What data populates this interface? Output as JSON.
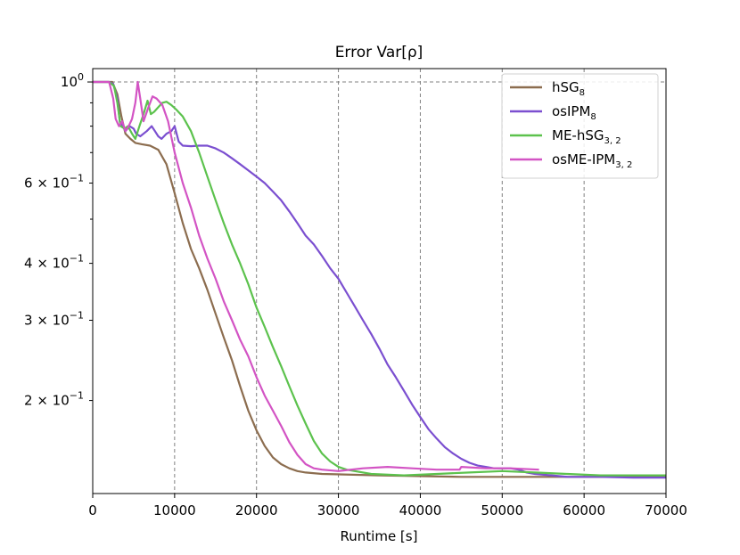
{
  "chart_data": {
    "type": "line",
    "title": "Error Var[ρ]",
    "xlabel": "Runtime [s]",
    "ylabel": "",
    "xlim": [
      0,
      70000
    ],
    "ylim": [
      0.125,
      1.07
    ],
    "yscale": "log",
    "grid": "vertical major lines and y = 10^0, dashed grey",
    "legend_position": "top-right",
    "x_ticks": [
      {
        "value": 0,
        "label": "0"
      },
      {
        "value": 10000,
        "label": "10000"
      },
      {
        "value": 20000,
        "label": "20000"
      },
      {
        "value": 30000,
        "label": "30000"
      },
      {
        "value": 40000,
        "label": "40000"
      },
      {
        "value": 50000,
        "label": "50000"
      },
      {
        "value": 60000,
        "label": "60000"
      },
      {
        "value": 70000,
        "label": "70000"
      }
    ],
    "y_ticks": [
      {
        "value": 1.0,
        "mantissa": "10",
        "exponent": "0"
      },
      {
        "value": 0.6,
        "mantissa": "6 × 10",
        "exponent": "−1"
      },
      {
        "value": 0.4,
        "mantissa": "4 × 10",
        "exponent": "−1"
      },
      {
        "value": 0.3,
        "mantissa": "3 × 10",
        "exponent": "−1"
      },
      {
        "value": 0.2,
        "mantissa": "2 × 10",
        "exponent": "−1"
      }
    ],
    "series": [
      {
        "name": "hSG",
        "subscript": "8",
        "color": "#8c6d4f",
        "points": [
          [
            0,
            1.0
          ],
          [
            2400,
            1.0
          ],
          [
            3000,
            0.94
          ],
          [
            3500,
            0.84
          ],
          [
            4000,
            0.77
          ],
          [
            4600,
            0.75
          ],
          [
            5200,
            0.735
          ],
          [
            6000,
            0.73
          ],
          [
            7000,
            0.725
          ],
          [
            8000,
            0.71
          ],
          [
            9000,
            0.66
          ],
          [
            10000,
            0.57
          ],
          [
            11000,
            0.49
          ],
          [
            12000,
            0.43
          ],
          [
            13000,
            0.39
          ],
          [
            14000,
            0.35
          ],
          [
            15000,
            0.31
          ],
          [
            16000,
            0.275
          ],
          [
            17000,
            0.245
          ],
          [
            18000,
            0.215
          ],
          [
            19000,
            0.19
          ],
          [
            20000,
            0.172
          ],
          [
            21000,
            0.159
          ],
          [
            22000,
            0.15
          ],
          [
            23000,
            0.145
          ],
          [
            24000,
            0.142
          ],
          [
            25000,
            0.14
          ],
          [
            26000,
            0.139
          ],
          [
            28000,
            0.138
          ],
          [
            35000,
            0.137
          ],
          [
            45000,
            0.136
          ],
          [
            55000,
            0.136
          ],
          [
            70000,
            0.136
          ]
        ]
      },
      {
        "name": "osIPM",
        "subscript": "8",
        "color": "#7b4fd0",
        "points": [
          [
            0,
            1.0
          ],
          [
            2000,
            1.0
          ],
          [
            2500,
            0.99
          ],
          [
            3000,
            0.92
          ],
          [
            3300,
            0.82
          ],
          [
            3700,
            0.8
          ],
          [
            4000,
            0.78
          ],
          [
            4500,
            0.8
          ],
          [
            5000,
            0.79
          ],
          [
            5300,
            0.77
          ],
          [
            5800,
            0.76
          ],
          [
            6600,
            0.78
          ],
          [
            7200,
            0.8
          ],
          [
            7600,
            0.78
          ],
          [
            8000,
            0.76
          ],
          [
            8400,
            0.75
          ],
          [
            9000,
            0.77
          ],
          [
            9600,
            0.78
          ],
          [
            10000,
            0.8
          ],
          [
            10500,
            0.74
          ],
          [
            11000,
            0.725
          ],
          [
            12000,
            0.723
          ],
          [
            13000,
            0.725
          ],
          [
            14000,
            0.725
          ],
          [
            15000,
            0.715
          ],
          [
            16000,
            0.7
          ],
          [
            17000,
            0.68
          ],
          [
            18000,
            0.66
          ],
          [
            19000,
            0.64
          ],
          [
            20000,
            0.62
          ],
          [
            21000,
            0.6
          ],
          [
            22000,
            0.575
          ],
          [
            23000,
            0.55
          ],
          [
            24000,
            0.52
          ],
          [
            25000,
            0.49
          ],
          [
            26000,
            0.46
          ],
          [
            27000,
            0.44
          ],
          [
            28000,
            0.415
          ],
          [
            29000,
            0.39
          ],
          [
            30000,
            0.37
          ],
          [
            31000,
            0.345
          ],
          [
            32000,
            0.322
          ],
          [
            33000,
            0.3
          ],
          [
            34000,
            0.28
          ],
          [
            35000,
            0.26
          ],
          [
            36000,
            0.24
          ],
          [
            37000,
            0.225
          ],
          [
            38000,
            0.21
          ],
          [
            39000,
            0.196
          ],
          [
            40000,
            0.184
          ],
          [
            41000,
            0.173
          ],
          [
            42000,
            0.165
          ],
          [
            43000,
            0.158
          ],
          [
            44000,
            0.153
          ],
          [
            45000,
            0.149
          ],
          [
            46000,
            0.146
          ],
          [
            47000,
            0.144
          ],
          [
            48000,
            0.143
          ],
          [
            49000,
            0.142
          ],
          [
            50000,
            0.142
          ],
          [
            51000,
            0.142
          ],
          [
            52000,
            0.141
          ],
          [
            53000,
            0.139
          ],
          [
            54000,
            0.138
          ],
          [
            56000,
            0.137
          ],
          [
            58000,
            0.136
          ],
          [
            62000,
            0.136
          ],
          [
            66000,
            0.1355
          ],
          [
            70000,
            0.1355
          ]
        ]
      },
      {
        "name": "ME-hSG",
        "subscript": "3, 2",
        "color": "#5cc24d",
        "points": [
          [
            0,
            1.0
          ],
          [
            2000,
            1.0
          ],
          [
            2600,
            0.98
          ],
          [
            3000,
            0.9
          ],
          [
            3400,
            0.8
          ],
          [
            3900,
            0.79
          ],
          [
            4300,
            0.8
          ],
          [
            4800,
            0.77
          ],
          [
            5200,
            0.75
          ],
          [
            5700,
            0.8
          ],
          [
            6200,
            0.85
          ],
          [
            6700,
            0.91
          ],
          [
            7100,
            0.85
          ],
          [
            7500,
            0.86
          ],
          [
            8000,
            0.88
          ],
          [
            8500,
            0.9
          ],
          [
            9000,
            0.905
          ],
          [
            9600,
            0.89
          ],
          [
            10200,
            0.87
          ],
          [
            11000,
            0.84
          ],
          [
            12000,
            0.78
          ],
          [
            13000,
            0.7
          ],
          [
            14000,
            0.62
          ],
          [
            15000,
            0.55
          ],
          [
            16000,
            0.49
          ],
          [
            17000,
            0.44
          ],
          [
            18000,
            0.4
          ],
          [
            19000,
            0.36
          ],
          [
            20000,
            0.32
          ],
          [
            21000,
            0.29
          ],
          [
            22000,
            0.262
          ],
          [
            23000,
            0.238
          ],
          [
            24000,
            0.215
          ],
          [
            25000,
            0.195
          ],
          [
            26000,
            0.178
          ],
          [
            27000,
            0.163
          ],
          [
            28000,
            0.153
          ],
          [
            29000,
            0.147
          ],
          [
            30000,
            0.143
          ],
          [
            31000,
            0.141
          ],
          [
            32000,
            0.14
          ],
          [
            34000,
            0.138
          ],
          [
            38000,
            0.137
          ],
          [
            42000,
            0.138
          ],
          [
            46000,
            0.139
          ],
          [
            50000,
            0.14
          ],
          [
            54000,
            0.139
          ],
          [
            58000,
            0.138
          ],
          [
            62000,
            0.137
          ],
          [
            66000,
            0.137
          ],
          [
            70000,
            0.137
          ]
        ]
      },
      {
        "name": "osME-IPM",
        "subscript": "3, 2",
        "color": "#d354c4",
        "points": [
          [
            0,
            1.0
          ],
          [
            2000,
            1.0
          ],
          [
            2500,
            0.92
          ],
          [
            2800,
            0.83
          ],
          [
            3200,
            0.8
          ],
          [
            3600,
            0.82
          ],
          [
            4000,
            0.78
          ],
          [
            4400,
            0.8
          ],
          [
            4800,
            0.83
          ],
          [
            5200,
            0.9
          ],
          [
            5500,
            1.0
          ],
          [
            5800,
            0.92
          ],
          [
            6200,
            0.82
          ],
          [
            6800,
            0.88
          ],
          [
            7300,
            0.93
          ],
          [
            7800,
            0.92
          ],
          [
            8500,
            0.89
          ],
          [
            9200,
            0.82
          ],
          [
            10000,
            0.7
          ],
          [
            11000,
            0.6
          ],
          [
            12000,
            0.53
          ],
          [
            13000,
            0.46
          ],
          [
            14000,
            0.41
          ],
          [
            15000,
            0.37
          ],
          [
            16000,
            0.33
          ],
          [
            17000,
            0.3
          ],
          [
            18000,
            0.272
          ],
          [
            19000,
            0.25
          ],
          [
            20000,
            0.225
          ],
          [
            21000,
            0.205
          ],
          [
            22000,
            0.19
          ],
          [
            23000,
            0.176
          ],
          [
            24000,
            0.162
          ],
          [
            25000,
            0.152
          ],
          [
            26000,
            0.145
          ],
          [
            27000,
            0.142
          ],
          [
            28000,
            0.141
          ],
          [
            30000,
            0.14
          ],
          [
            33000,
            0.142
          ],
          [
            36000,
            0.143
          ],
          [
            39000,
            0.142
          ],
          [
            42000,
            0.141
          ],
          [
            44800,
            0.141
          ],
          [
            45000,
            0.143
          ],
          [
            48000,
            0.142
          ],
          [
            51000,
            0.142
          ],
          [
            54500,
            0.141
          ]
        ]
      }
    ]
  }
}
